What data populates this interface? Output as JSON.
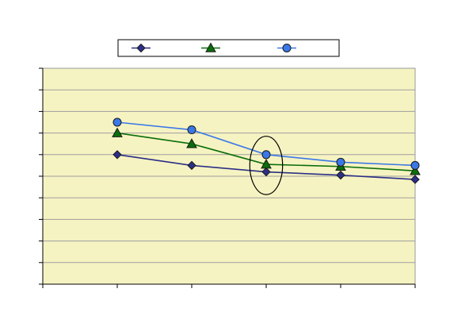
{
  "chart_data": {
    "type": "line",
    "title": "",
    "xlabel": "",
    "ylabel": "",
    "x": [
      1,
      2,
      3,
      4,
      5
    ],
    "xlim": [
      0,
      5
    ],
    "ylim": [
      0,
      10
    ],
    "y_tick_count": 11,
    "grid": true,
    "legend_placement": "top-center",
    "plot_background": "#F6F3C2",
    "series": [
      {
        "values": [
          6.0,
          5.5,
          5.2,
          5.05,
          4.85
        ],
        "color": "#2B2F86",
        "marker": "diamond"
      },
      {
        "values": [
          7.0,
          6.5,
          5.55,
          5.45,
          5.25
        ],
        "color": "#0A6E0A",
        "marker": "triangle"
      },
      {
        "values": [
          7.5,
          7.15,
          6.0,
          5.65,
          5.5
        ],
        "color": "#3B78E7",
        "marker": "circle"
      }
    ],
    "annotations": [
      {
        "type": "ellipse",
        "x": 3,
        "y": 5.5,
        "rx": 0.22,
        "ry": 1.35
      }
    ]
  }
}
